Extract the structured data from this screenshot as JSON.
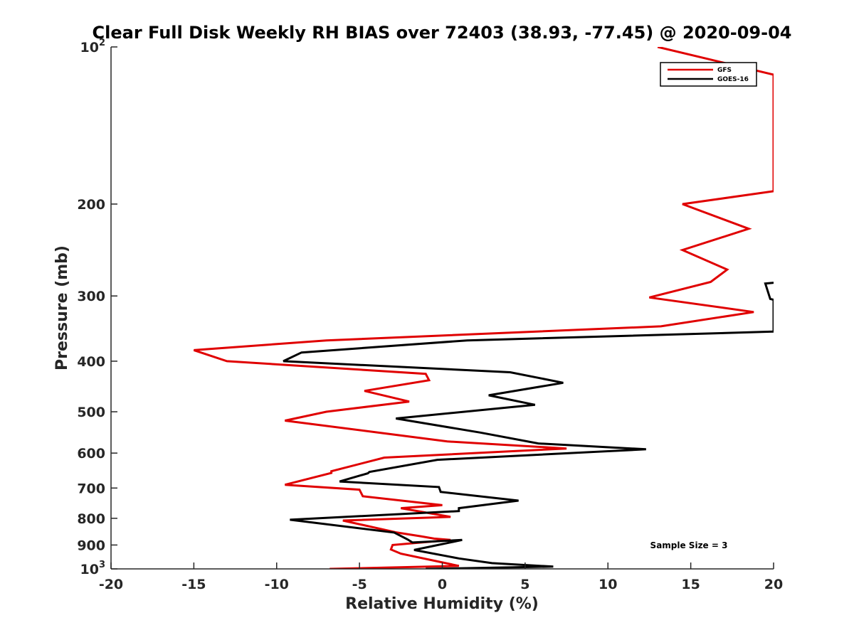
{
  "chart_data": {
    "type": "line",
    "title": "Clear Full Disk Weekly RH BIAS over 72403 (38.93, -77.45) @ 2020-09-04",
    "xlabel": "Relative Humidity (%)",
    "ylabel": "Pressure (mb)",
    "xlim": [
      -20,
      20
    ],
    "ylim": [
      100,
      1000
    ],
    "y_scale": "log",
    "y_reversed": true,
    "x_ticks": [
      -20,
      -15,
      -10,
      -5,
      0,
      5,
      10,
      15,
      20
    ],
    "y_ticks": [
      {
        "value": 100,
        "base": "10",
        "exp": "2"
      },
      {
        "value": 200,
        "label": "200"
      },
      {
        "value": 300,
        "label": "300"
      },
      {
        "value": 400,
        "label": "400"
      },
      {
        "value": 500,
        "label": "500"
      },
      {
        "value": 600,
        "label": "600"
      },
      {
        "value": 700,
        "label": "700"
      },
      {
        "value": 800,
        "label": "800"
      },
      {
        "value": 900,
        "label": "900"
      },
      {
        "value": 1000,
        "base": "10",
        "exp": "3"
      }
    ],
    "grid": false,
    "legend": "top-right",
    "annotation": "Sample Size = 3",
    "series": [
      {
        "name": "GFS",
        "color": "#e00000",
        "points": [
          [
            13,
            100
          ],
          [
            20,
            113
          ],
          [
            20,
            189
          ],
          [
            14.5,
            200
          ],
          [
            18.5,
            223
          ],
          [
            14.5,
            245
          ],
          [
            17.2,
            267
          ],
          [
            16.2,
            282
          ],
          [
            12.5,
            302
          ],
          [
            18.8,
            322
          ],
          [
            13.2,
            343
          ],
          [
            -7,
            365
          ],
          [
            -15,
            381
          ],
          [
            -13,
            400
          ],
          [
            -1,
            423
          ],
          [
            -0.8,
            435
          ],
          [
            -4.7,
            456
          ],
          [
            -2,
            478
          ],
          [
            -7,
            500
          ],
          [
            -9.5,
            520
          ],
          [
            -3.5,
            550
          ],
          [
            0.3,
            570
          ],
          [
            7.5,
            588
          ],
          [
            -3.5,
            612
          ],
          [
            -6.7,
            650
          ],
          [
            -6.7,
            655
          ],
          [
            -9.5,
            690
          ],
          [
            -5,
            705
          ],
          [
            -4.8,
            726
          ],
          [
            0,
            755
          ],
          [
            -2.5,
            765
          ],
          [
            0.5,
            795
          ],
          [
            -6,
            808
          ],
          [
            -2.8,
            851
          ],
          [
            -1.3,
            866
          ],
          [
            -0.5,
            875
          ],
          [
            0.5,
            880
          ],
          [
            -3,
            900
          ],
          [
            -3.1,
            918
          ],
          [
            -2.5,
            935
          ],
          [
            1,
            987
          ],
          [
            -6.8,
            1000
          ]
        ]
      },
      {
        "name": "GOES-16",
        "color": "#000000",
        "points": [
          [
            20,
            283
          ],
          [
            19.5,
            284
          ],
          [
            19.8,
            304
          ],
          [
            20,
            305
          ],
          [
            20,
            351
          ],
          [
            1.5,
            365
          ],
          [
            -8.5,
            385
          ],
          [
            -9.6,
            400
          ],
          [
            4.1,
            420
          ],
          [
            7.3,
            440
          ],
          [
            2.8,
            465
          ],
          [
            5.6,
            485
          ],
          [
            -2.8,
            515
          ],
          [
            2.3,
            548
          ],
          [
            5.8,
            575
          ],
          [
            12.3,
            590
          ],
          [
            -0.3,
            618
          ],
          [
            -4.4,
            652
          ],
          [
            -4.5,
            656
          ],
          [
            -6.2,
            680
          ],
          [
            -0.2,
            697
          ],
          [
            -0.1,
            712
          ],
          [
            4.6,
            740
          ],
          [
            1,
            765
          ],
          [
            1,
            775
          ],
          [
            -9.2,
            805
          ],
          [
            -2.9,
            852
          ],
          [
            -2.1,
            878
          ],
          [
            -1.8,
            890
          ],
          [
            1.2,
            880
          ],
          [
            -1.7,
            920
          ],
          [
            1,
            955
          ],
          [
            3,
            975
          ],
          [
            6.7,
            990
          ],
          [
            -1,
            1000
          ]
        ]
      }
    ]
  }
}
